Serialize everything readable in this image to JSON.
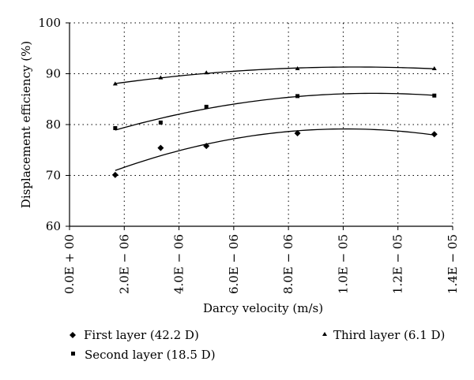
{
  "chart_data": {
    "type": "scatter",
    "title": "",
    "xlabel": "Darcy velocity (m/s)",
    "ylabel": "Displacement efficiency (%)",
    "xlim": [
      0.0,
      1.4e-05
    ],
    "ylim": [
      60,
      100
    ],
    "x_tick_labels": [
      "0.0E + 00",
      "2.0E − 06",
      "4.0E − 06",
      "6.0E − 06",
      "8.0E − 06",
      "1.0E − 05",
      "1.2E − 05",
      "1.4E − 05"
    ],
    "x_ticks": [
      0.0,
      2e-06,
      4e-06,
      6e-06,
      8e-06,
      1e-05,
      1.2e-05,
      1.4e-05
    ],
    "y_ticks": [
      60,
      70,
      80,
      90,
      100
    ],
    "grid": "dotted",
    "trendlines": true,
    "legend_position": "bottom",
    "series": [
      {
        "name": "First layer (42.2 D)",
        "marker": "diamond",
        "x": [
          1.67e-06,
          3.33e-06,
          5e-06,
          8.33e-06,
          1.333e-05
        ],
        "y": [
          70.1,
          75.4,
          75.8,
          78.3,
          78.1
        ]
      },
      {
        "name": "Second layer (18.5 D)",
        "marker": "square",
        "x": [
          1.67e-06,
          3.33e-06,
          5e-06,
          8.33e-06,
          1.333e-05
        ],
        "y": [
          79.3,
          80.4,
          83.5,
          85.6,
          85.7
        ]
      },
      {
        "name": "Third layer (6.1 D)",
        "marker": "triangle",
        "x": [
          1.67e-06,
          3.33e-06,
          5e-06,
          8.33e-06,
          1.333e-05
        ],
        "y": [
          88.0,
          89.2,
          90.2,
          91.0,
          91.0
        ]
      }
    ]
  }
}
